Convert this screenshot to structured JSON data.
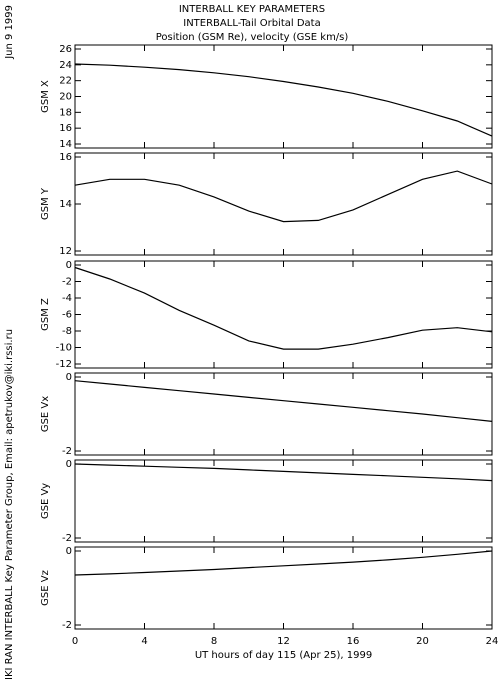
{
  "header": {
    "title": "INTERBALL KEY PARAMETERS",
    "subtitle": "INTERBALL-Tail Orbital Data",
    "note": "Position (GSM Re), velocity (GSE km/s)"
  },
  "side": {
    "date": "Jun  9 1999",
    "credit": "IKI RAN INTERBALL Key Parameter Group, Email: apetrukov@iki.rssi.ru"
  },
  "chart_data": [
    {
      "type": "line",
      "ylabel": "GSM X",
      "x": [
        0,
        2,
        4,
        6,
        8,
        10,
        12,
        14,
        16,
        18,
        20,
        22,
        24
      ],
      "values": [
        24.1,
        23.95,
        23.7,
        23.4,
        23.0,
        22.5,
        21.9,
        21.2,
        20.4,
        19.4,
        18.2,
        16.9,
        15.0
      ],
      "color": "#000000",
      "xlim": [
        0,
        24
      ],
      "xticks": [
        0,
        4,
        8,
        12,
        16,
        20,
        24
      ],
      "ylim": [
        14,
        26
      ],
      "yticks": [
        14,
        16,
        18,
        20,
        22,
        24,
        26
      ]
    },
    {
      "type": "line",
      "ylabel": "GSM Y",
      "x": [
        0,
        2,
        4,
        6,
        8,
        10,
        12,
        14,
        16,
        18,
        20,
        22,
        24
      ],
      "values": [
        14.8,
        15.05,
        15.05,
        14.8,
        14.3,
        13.7,
        13.25,
        13.3,
        13.75,
        14.4,
        15.05,
        15.4,
        14.85
      ],
      "color": "#000000",
      "xlim": [
        0,
        24
      ],
      "xticks": [
        0,
        4,
        8,
        12,
        16,
        20,
        24
      ],
      "ylim": [
        12,
        16
      ],
      "yticks": [
        12,
        14,
        16
      ]
    },
    {
      "type": "line",
      "ylabel": "GSM Z",
      "x": [
        0,
        2,
        4,
        6,
        8,
        10,
        12,
        14,
        16,
        18,
        20,
        22,
        24
      ],
      "values": [
        -0.3,
        -1.7,
        -3.4,
        -5.5,
        -7.3,
        -9.2,
        -10.2,
        -10.2,
        -9.6,
        -8.8,
        -7.9,
        -7.6,
        -8.1
      ],
      "color": "#000000",
      "xlim": [
        0,
        24
      ],
      "xticks": [
        0,
        4,
        8,
        12,
        16,
        20,
        24
      ],
      "ylim": [
        -12,
        0
      ],
      "yticks": [
        -12,
        -10,
        -8,
        -6,
        -4,
        -2,
        0
      ]
    },
    {
      "type": "line",
      "ylabel": "GSE Vx",
      "x": [
        0,
        2,
        4,
        6,
        8,
        10,
        12,
        14,
        16,
        18,
        20,
        22,
        24
      ],
      "values": [
        -0.1,
        -0.19,
        -0.28,
        -0.37,
        -0.46,
        -0.55,
        -0.64,
        -0.73,
        -0.82,
        -0.91,
        -1.0,
        -1.1,
        -1.2
      ],
      "color": "#000000",
      "xlim": [
        0,
        24
      ],
      "xticks": [
        0,
        4,
        8,
        12,
        16,
        20,
        24
      ],
      "ylim": [
        -2,
        0
      ],
      "yticks": [
        -2,
        0
      ]
    },
    {
      "type": "line",
      "ylabel": "GSE Vy",
      "x": [
        0,
        2,
        4,
        6,
        8,
        10,
        12,
        14,
        16,
        18,
        20,
        22,
        24
      ],
      "values": [
        0.0,
        -0.03,
        -0.06,
        -0.09,
        -0.12,
        -0.16,
        -0.2,
        -0.24,
        -0.28,
        -0.32,
        -0.36,
        -0.4,
        -0.45
      ],
      "color": "#000000",
      "xlim": [
        0,
        24
      ],
      "xticks": [
        0,
        4,
        8,
        12,
        16,
        20,
        24
      ],
      "ylim": [
        -2,
        0
      ],
      "yticks": [
        -2,
        0
      ]
    },
    {
      "type": "line",
      "ylabel": "GSE Vz",
      "xlabel": "UT hours of day 115 (Apr 25), 1999",
      "x": [
        0,
        2,
        4,
        6,
        8,
        10,
        12,
        14,
        16,
        18,
        20,
        22,
        24
      ],
      "values": [
        -0.65,
        -0.62,
        -0.58,
        -0.54,
        -0.5,
        -0.45,
        -0.4,
        -0.35,
        -0.3,
        -0.24,
        -0.17,
        -0.09,
        0.0
      ],
      "color": "#000000",
      "xlim": [
        0,
        24
      ],
      "xticks": [
        0,
        4,
        8,
        12,
        16,
        20,
        24
      ],
      "ylim": [
        -2,
        0
      ],
      "yticks": [
        -2,
        0
      ]
    }
  ]
}
